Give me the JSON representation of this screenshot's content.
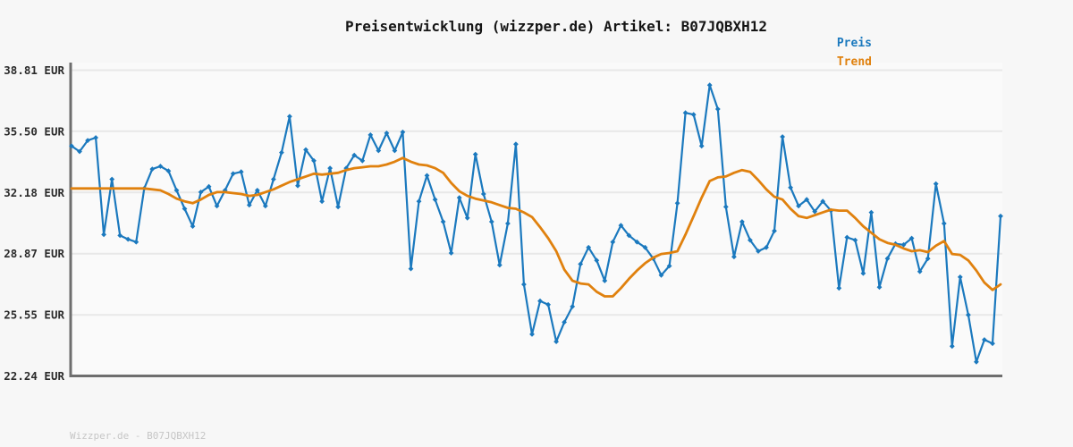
{
  "header": {
    "title": "Preisentwicklung (wizzper.de) Artikel: B07JQBXH12"
  },
  "legend": {
    "position": "top-right",
    "items": [
      {
        "label": "Preis",
        "color": "#1b79be"
      },
      {
        "label": "Trend",
        "color": "#e0810e"
      }
    ]
  },
  "footer": {
    "watermark": "Wizzper.de - B07JQBXH12"
  },
  "chart_data": {
    "type": "line",
    "title": "Preisentwicklung (wizzper.de) Artikel: B07JQBXH12",
    "xlabel": "",
    "ylabel": "EUR",
    "ylim": [
      22.24,
      38.81
    ],
    "grid": "horizontal-only",
    "x_axis_labels_visible": false,
    "legend_position": "top-right",
    "plot_bg": "#fafafa",
    "grid_color": "#e8e8e8",
    "axis_color": "#6e6e6e",
    "tick_color": "#2b2b2b",
    "y_ticks": [
      {
        "value": 38.81,
        "label": "38.81 EUR"
      },
      {
        "value": 35.5,
        "label": "35.50 EUR"
      },
      {
        "value": 32.18,
        "label": "32.18 EUR"
      },
      {
        "value": 28.87,
        "label": "28.87 EUR"
      },
      {
        "value": 25.55,
        "label": "25.55 EUR"
      },
      {
        "value": 22.24,
        "label": "22.24 EUR"
      }
    ],
    "series": [
      {
        "name": "Preis",
        "color": "#1b79be",
        "marker": "diamond",
        "line_width": 2.2,
        "values": [
          34.7,
          34.4,
          35.0,
          35.15,
          29.9,
          32.9,
          29.85,
          29.65,
          29.5,
          32.4,
          33.45,
          33.6,
          33.35,
          32.3,
          31.3,
          30.35,
          32.2,
          32.5,
          31.45,
          32.3,
          33.2,
          33.3,
          31.5,
          32.3,
          31.45,
          32.9,
          34.35,
          36.3,
          32.55,
          34.5,
          33.9,
          31.7,
          33.5,
          31.4,
          33.5,
          34.2,
          33.9,
          35.3,
          34.45,
          35.4,
          34.45,
          35.45,
          28.05,
          31.7,
          33.1,
          31.8,
          30.6,
          28.9,
          31.9,
          30.8,
          34.25,
          32.1,
          30.6,
          28.25,
          30.5,
          34.8,
          27.2,
          24.5,
          26.3,
          26.1,
          24.1,
          25.15,
          26.0,
          28.3,
          29.2,
          28.5,
          27.4,
          29.5,
          30.4,
          29.85,
          29.5,
          29.2,
          28.6,
          27.7,
          28.2,
          31.6,
          36.5,
          36.4,
          34.7,
          38.0,
          36.7,
          31.4,
          28.7,
          30.6,
          29.6,
          29.0,
          29.2,
          30.1,
          35.2,
          32.45,
          31.45,
          31.8,
          31.15,
          31.7,
          31.2,
          27.0,
          29.75,
          29.6,
          27.8,
          31.1,
          27.05,
          28.6,
          29.4,
          29.35,
          29.7,
          27.9,
          28.6,
          32.65,
          30.5,
          23.85,
          27.6,
          25.55,
          23.0,
          24.2,
          24.0,
          30.9
        ]
      },
      {
        "name": "Trend",
        "color": "#e0810e",
        "marker": "none",
        "line_width": 2.8,
        "values": [
          32.4,
          32.4,
          32.4,
          32.4,
          32.4,
          32.4,
          32.4,
          32.4,
          32.4,
          32.4,
          32.35,
          32.3,
          32.1,
          31.85,
          31.7,
          31.6,
          31.8,
          32.05,
          32.2,
          32.2,
          32.15,
          32.1,
          32.0,
          32.05,
          32.2,
          32.35,
          32.55,
          32.75,
          32.9,
          33.05,
          33.2,
          33.15,
          33.2,
          33.25,
          33.4,
          33.5,
          33.55,
          33.6,
          33.6,
          33.7,
          33.85,
          34.05,
          33.85,
          33.7,
          33.65,
          33.5,
          33.25,
          32.7,
          32.25,
          32.0,
          31.85,
          31.75,
          31.65,
          31.5,
          31.35,
          31.3,
          31.1,
          30.85,
          30.3,
          29.7,
          29.0,
          28.0,
          27.4,
          27.25,
          27.2,
          26.8,
          26.55,
          26.55,
          27.0,
          27.5,
          27.95,
          28.35,
          28.65,
          28.85,
          28.9,
          29.0,
          29.9,
          30.9,
          31.9,
          32.8,
          33.0,
          33.05,
          33.25,
          33.4,
          33.3,
          32.85,
          32.35,
          31.95,
          31.8,
          31.3,
          30.9,
          30.8,
          30.95,
          31.1,
          31.25,
          31.2,
          31.2,
          30.8,
          30.35,
          30.0,
          29.65,
          29.45,
          29.35,
          29.15,
          29.0,
          29.05,
          28.95,
          29.3,
          29.55,
          28.85,
          28.8,
          28.5,
          27.95,
          27.3,
          26.9,
          27.2
        ]
      }
    ]
  }
}
